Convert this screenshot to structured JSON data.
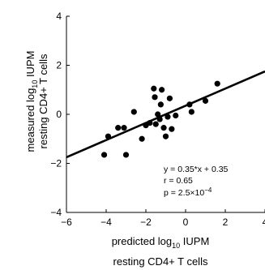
{
  "chart_data": {
    "type": "scatter",
    "xlabel": {
      "line1_prefix": "predicted log",
      "line1_sub": "10",
      "line1_suffix": " IUPM",
      "line2": "resting CD4+ T cells"
    },
    "ylabel": {
      "line1_prefix": "measured log",
      "line1_sub": "10",
      "line1_suffix": " IUPM",
      "line2": "resting CD4+ T cells"
    },
    "xlim": [
      -6,
      4
    ],
    "ylim": [
      -4,
      4
    ],
    "xticks": [
      -6,
      -4,
      -2,
      0,
      2,
      4
    ],
    "yticks": [
      -4,
      -2,
      0,
      2,
      4
    ],
    "grid": false,
    "fit_line": {
      "slope": 0.35,
      "intercept": 0.35
    },
    "annotations": {
      "equation": "y = 0.35*x + 0.35",
      "r": "r = 0.65",
      "p_prefix": "p = 2.5×10",
      "p_exponent": "−4"
    },
    "points": [
      {
        "x": -4.1,
        "y": -1.65
      },
      {
        "x": -3.9,
        "y": -0.9
      },
      {
        "x": -3.4,
        "y": -0.55
      },
      {
        "x": -3.1,
        "y": -0.55
      },
      {
        "x": -3.0,
        "y": -1.65
      },
      {
        "x": -2.6,
        "y": 0.1
      },
      {
        "x": -2.2,
        "y": -1.0
      },
      {
        "x": -2.0,
        "y": -0.45
      },
      {
        "x": -1.8,
        "y": -0.35
      },
      {
        "x": -1.6,
        "y": 1.05
      },
      {
        "x": -1.55,
        "y": 0.7
      },
      {
        "x": -1.5,
        "y": -0.4
      },
      {
        "x": -1.4,
        "y": 0.0
      },
      {
        "x": -1.3,
        "y": -0.2
      },
      {
        "x": -1.25,
        "y": 0.4
      },
      {
        "x": -1.2,
        "y": 1.0
      },
      {
        "x": -1.1,
        "y": -0.55
      },
      {
        "x": -1.0,
        "y": -0.9
      },
      {
        "x": -0.9,
        "y": -0.1
      },
      {
        "x": -0.8,
        "y": 0.65
      },
      {
        "x": -0.7,
        "y": -0.6
      },
      {
        "x": -0.5,
        "y": -0.05
      },
      {
        "x": 0.2,
        "y": 0.4
      },
      {
        "x": 0.3,
        "y": 0.1
      },
      {
        "x": 1.0,
        "y": 0.55
      },
      {
        "x": 1.6,
        "y": 1.25
      }
    ]
  }
}
